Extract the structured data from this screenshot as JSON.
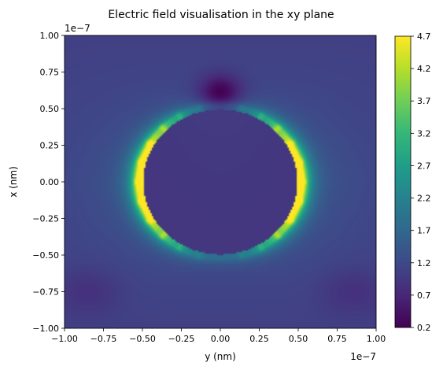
{
  "chart_data": {
    "type": "heatmap",
    "title": "Electric field visualisation in the xy plane",
    "xlabel": "y (nm)",
    "ylabel": "x (nm)",
    "x_offset_label": "1e−7",
    "y_offset_label": "1e−7",
    "xlim": [
      -1.0,
      1.0
    ],
    "ylim": [
      -1.0,
      1.0
    ],
    "x_scale_factor": 1e-07,
    "y_scale_factor": 1e-07,
    "x_ticks": [
      "−1.00",
      "−0.75",
      "−0.50",
      "−0.25",
      "0.00",
      "0.25",
      "0.50",
      "0.75",
      "1.00"
    ],
    "y_ticks": [
      "1.00",
      "0.75",
      "0.50",
      "0.25",
      "0.00",
      "−0.25",
      "−0.50",
      "−0.75",
      "−1.00"
    ],
    "colormap": "viridis",
    "colorbar": {
      "range": [
        0.2,
        4.7
      ],
      "ticks": [
        "4.7",
        "4.2",
        "3.7",
        "3.2",
        "2.7",
        "2.2",
        "1.7",
        "1.2",
        "0.7",
        "0.2"
      ]
    },
    "features": {
      "sphere_radius": 0.53,
      "sphere_center": [
        0.0,
        0.0
      ],
      "field_inside_sphere": 0.9,
      "field_background": 1.05,
      "max_field_at_sides": 4.7,
      "low_field_spot_top": [
        0.0,
        0.63
      ]
    }
  }
}
